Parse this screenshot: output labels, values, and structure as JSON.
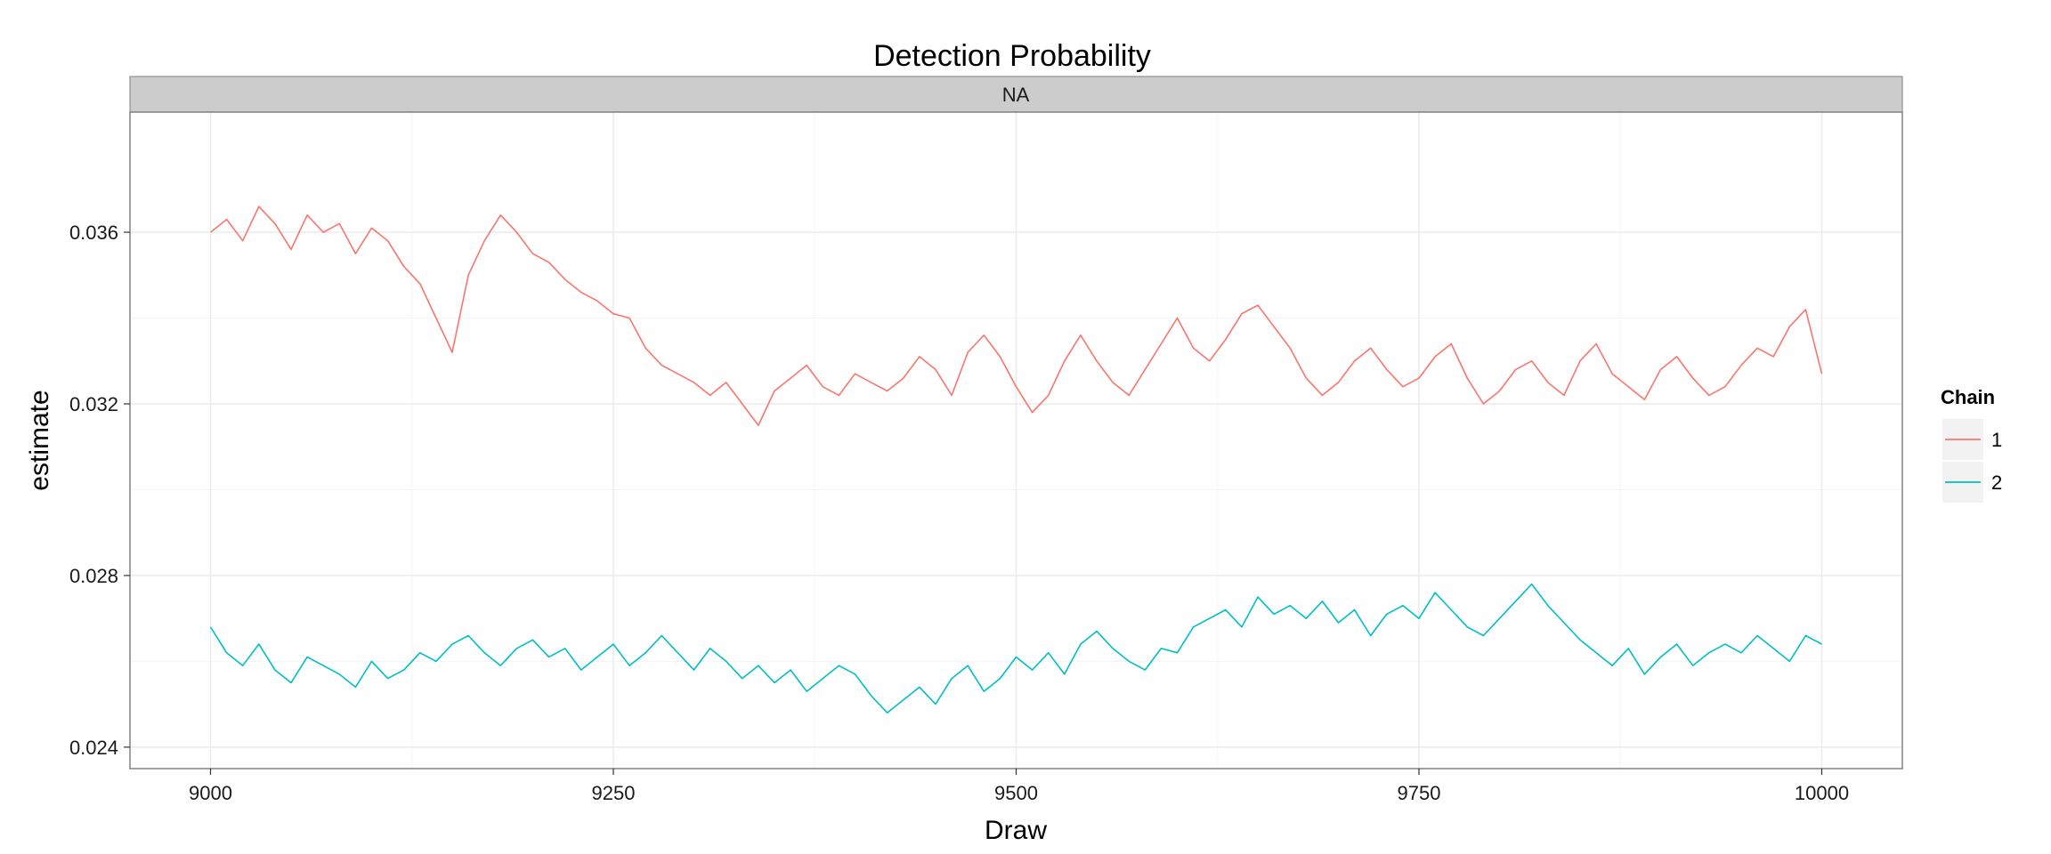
{
  "chart_data": {
    "type": "line",
    "title": "Detection Probability",
    "facet_label": "NA",
    "xlabel": "Draw",
    "ylabel": "estimate",
    "xlim": [
      8950,
      10050
    ],
    "ylim": [
      0.0235,
      0.0388
    ],
    "x_ticks": [
      9000,
      9250,
      9500,
      9750,
      10000
    ],
    "x_tick_labels": [
      "9000",
      "9250",
      "9500",
      "9750",
      "10000"
    ],
    "y_ticks": [
      0.024,
      0.028,
      0.032,
      0.036
    ],
    "y_tick_labels": [
      "0.024",
      "0.028",
      "0.032",
      "0.036"
    ],
    "grid": true,
    "legend": {
      "title": "Chain",
      "position": "right"
    },
    "series": [
      {
        "name": "1",
        "color": "#F8766D",
        "x_start": 9000,
        "x_step": 10,
        "values": [
          0.036,
          0.0363,
          0.0358,
          0.0366,
          0.0362,
          0.0356,
          0.0364,
          0.036,
          0.0362,
          0.0355,
          0.0361,
          0.0358,
          0.0352,
          0.0348,
          0.034,
          0.0332,
          0.035,
          0.0358,
          0.0364,
          0.036,
          0.0355,
          0.0353,
          0.0349,
          0.0346,
          0.0344,
          0.0341,
          0.034,
          0.0333,
          0.0329,
          0.0327,
          0.0325,
          0.0322,
          0.0325,
          0.032,
          0.0315,
          0.0323,
          0.0326,
          0.0329,
          0.0324,
          0.0322,
          0.0327,
          0.0325,
          0.0323,
          0.0326,
          0.0331,
          0.0328,
          0.0322,
          0.0332,
          0.0336,
          0.0331,
          0.0324,
          0.0318,
          0.0322,
          0.033,
          0.0336,
          0.033,
          0.0325,
          0.0322,
          0.0328,
          0.0334,
          0.034,
          0.0333,
          0.033,
          0.0335,
          0.0341,
          0.0343,
          0.0338,
          0.0333,
          0.0326,
          0.0322,
          0.0325,
          0.033,
          0.0333,
          0.0328,
          0.0324,
          0.0326,
          0.0331,
          0.0334,
          0.0326,
          0.032,
          0.0323,
          0.0328,
          0.033,
          0.0325,
          0.0322,
          0.033,
          0.0334,
          0.0327,
          0.0324,
          0.0321,
          0.0328,
          0.0331,
          0.0326,
          0.0322,
          0.0324,
          0.0329,
          0.0333,
          0.0331,
          0.0338,
          0.0342,
          0.0327
        ]
      },
      {
        "name": "2",
        "color": "#00BFC4",
        "x_start": 9000,
        "x_step": 10,
        "values": [
          0.0268,
          0.0262,
          0.0259,
          0.0264,
          0.0258,
          0.0255,
          0.0261,
          0.0259,
          0.0257,
          0.0254,
          0.026,
          0.0256,
          0.0258,
          0.0262,
          0.026,
          0.0264,
          0.0266,
          0.0262,
          0.0259,
          0.0263,
          0.0265,
          0.0261,
          0.0263,
          0.0258,
          0.0261,
          0.0264,
          0.0259,
          0.0262,
          0.0266,
          0.0262,
          0.0258,
          0.0263,
          0.026,
          0.0256,
          0.0259,
          0.0255,
          0.0258,
          0.0253,
          0.0256,
          0.0259,
          0.0257,
          0.0252,
          0.0248,
          0.0251,
          0.0254,
          0.025,
          0.0256,
          0.0259,
          0.0253,
          0.0256,
          0.0261,
          0.0258,
          0.0262,
          0.0257,
          0.0264,
          0.0267,
          0.0263,
          0.026,
          0.0258,
          0.0263,
          0.0262,
          0.0268,
          0.027,
          0.0272,
          0.0268,
          0.0275,
          0.0271,
          0.0273,
          0.027,
          0.0274,
          0.0269,
          0.0272,
          0.0266,
          0.0271,
          0.0273,
          0.027,
          0.0276,
          0.0272,
          0.0268,
          0.0266,
          0.027,
          0.0274,
          0.0278,
          0.0273,
          0.0269,
          0.0265,
          0.0262,
          0.0259,
          0.0263,
          0.0257,
          0.0261,
          0.0264,
          0.0259,
          0.0262,
          0.0264,
          0.0262,
          0.0266,
          0.0263,
          0.026,
          0.0266,
          0.0264
        ]
      }
    ]
  }
}
